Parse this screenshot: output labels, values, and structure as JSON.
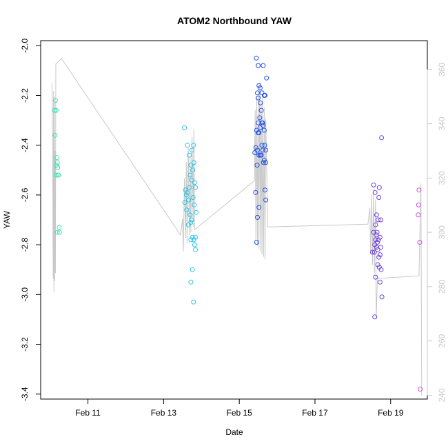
{
  "chart_data": {
    "type": "scatter",
    "title": "ATOM2 Northbound YAW",
    "xlabel": "Date",
    "ylabel": "YAW",
    "x_ticks": [
      "Feb 11",
      "Feb 13",
      "Feb 15",
      "Feb 17",
      "Feb 19"
    ],
    "x_tick_days": [
      11,
      13,
      15,
      17,
      19
    ],
    "xlim": [
      9.75,
      19.97
    ],
    "ylim": [
      -3.42,
      -1.98
    ],
    "y_ticks": [
      "-3.4",
      "-3.2",
      "-3.0",
      "-2.8",
      "-2.6",
      "-2.4",
      "-2.2",
      "-2.0"
    ],
    "y_tick_values": [
      -3.4,
      -3.2,
      -3.0,
      -2.8,
      -2.6,
      -2.4,
      -2.2,
      -2.0
    ],
    "y2_ticks": [
      "240",
      "260",
      "280",
      "300",
      "320",
      "340",
      "360"
    ],
    "y2_tick_values": [
      240,
      260,
      280,
      300,
      320,
      340,
      360
    ],
    "y2lim": [
      238.6,
      370.6
    ],
    "line_color": "#c8c8c8",
    "right_axis_color": "#c8c8c8",
    "line": [
      [
        10.05,
        355
      ],
      [
        10.07,
        318
      ],
      [
        10.08,
        283
      ],
      [
        10.09,
        352
      ],
      [
        10.1,
        278
      ],
      [
        10.11,
        350
      ],
      [
        10.12,
        282
      ],
      [
        10.13,
        330
      ],
      [
        10.14,
        285
      ],
      [
        10.15,
        362
      ],
      [
        10.3,
        364
      ],
      [
        13.45,
        299
      ],
      [
        13.5,
        305
      ],
      [
        13.52,
        293
      ],
      [
        13.55,
        320
      ],
      [
        13.58,
        298
      ],
      [
        13.6,
        326
      ],
      [
        13.62,
        296
      ],
      [
        13.65,
        331
      ],
      [
        13.68,
        299
      ],
      [
        13.7,
        328
      ],
      [
        13.72,
        300
      ],
      [
        13.75,
        335
      ],
      [
        13.78,
        302
      ],
      [
        13.8,
        338
      ],
      [
        13.82,
        301
      ],
      [
        15.4,
        319
      ],
      [
        15.42,
        345
      ],
      [
        15.44,
        297
      ],
      [
        15.46,
        350
      ],
      [
        15.48,
        295
      ],
      [
        15.5,
        352
      ],
      [
        15.52,
        294
      ],
      [
        15.54,
        355
      ],
      [
        15.56,
        293
      ],
      [
        15.58,
        348
      ],
      [
        15.6,
        292
      ],
      [
        15.62,
        350
      ],
      [
        15.64,
        291
      ],
      [
        15.66,
        346
      ],
      [
        15.68,
        290
      ],
      [
        15.7,
        342
      ],
      [
        15.75,
        302
      ],
      [
        18.4,
        303
      ],
      [
        18.45,
        309
      ],
      [
        18.47,
        292
      ],
      [
        18.5,
        314
      ],
      [
        18.52,
        288
      ],
      [
        18.55,
        316
      ],
      [
        18.57,
        285
      ],
      [
        18.6,
        312
      ],
      [
        18.62,
        268
      ],
      [
        18.65,
        283
      ],
      [
        19.75,
        284
      ],
      [
        19.8,
        318
      ],
      [
        19.82,
        240
      ]
    ],
    "series": [
      {
        "color": "#3ce3b1",
        "points": [
          [
            10.12,
            -2.26
          ],
          [
            10.14,
            -2.22
          ],
          [
            10.13,
            -2.36
          ],
          [
            10.16,
            -2.26
          ],
          [
            10.18,
            -2.45
          ],
          [
            10.19,
            -2.47
          ],
          [
            10.17,
            -2.48
          ],
          [
            10.2,
            -2.49
          ],
          [
            10.21,
            -2.52
          ],
          [
            10.16,
            -2.52
          ],
          [
            10.22,
            -2.52
          ],
          [
            10.24,
            -2.73
          ],
          [
            10.25,
            -2.75
          ],
          [
            10.19,
            -2.75
          ]
        ]
      },
      {
        "color": "#27c5e6",
        "points": [
          [
            13.55,
            -2.33
          ],
          [
            13.63,
            -2.4
          ],
          [
            13.68,
            -2.44
          ],
          [
            13.75,
            -2.42
          ],
          [
            13.79,
            -2.4
          ],
          [
            13.72,
            -2.48
          ],
          [
            13.8,
            -2.47
          ],
          [
            13.77,
            -2.5
          ],
          [
            13.7,
            -2.52
          ],
          [
            13.74,
            -2.54
          ],
          [
            13.82,
            -2.55
          ],
          [
            13.68,
            -2.57
          ],
          [
            13.84,
            -2.57
          ],
          [
            13.58,
            -2.58
          ],
          [
            13.62,
            -2.59
          ],
          [
            13.6,
            -2.6
          ],
          [
            13.78,
            -2.61
          ],
          [
            13.66,
            -2.62
          ],
          [
            13.56,
            -2.63
          ],
          [
            13.81,
            -2.64
          ],
          [
            13.61,
            -2.66
          ],
          [
            13.86,
            -2.67
          ],
          [
            13.7,
            -2.68
          ],
          [
            13.74,
            -2.7
          ],
          [
            13.72,
            -2.71
          ],
          [
            13.65,
            -2.72
          ],
          [
            13.76,
            -2.77
          ],
          [
            13.84,
            -2.77
          ],
          [
            13.72,
            -2.78
          ],
          [
            13.8,
            -2.78
          ],
          [
            13.82,
            -2.8
          ],
          [
            13.84,
            -2.82
          ],
          [
            13.76,
            -2.9
          ],
          [
            13.72,
            -2.95
          ],
          [
            13.79,
            -3.03
          ]
        ]
      },
      {
        "color": "#1f4ee8",
        "points": [
          [
            15.45,
            -2.05
          ],
          [
            15.5,
            -2.08
          ],
          [
            15.63,
            -2.08
          ],
          [
            15.72,
            -2.13
          ],
          [
            15.52,
            -2.16
          ],
          [
            15.55,
            -2.17
          ],
          [
            15.48,
            -2.19
          ],
          [
            15.6,
            -2.19
          ],
          [
            15.66,
            -2.2
          ],
          [
            15.68,
            -2.2
          ],
          [
            15.5,
            -2.21
          ],
          [
            15.56,
            -2.23
          ],
          [
            15.58,
            -2.26
          ],
          [
            15.54,
            -2.29
          ],
          [
            15.6,
            -2.31
          ],
          [
            15.62,
            -2.31
          ],
          [
            15.5,
            -2.31
          ],
          [
            15.63,
            -2.32
          ],
          [
            15.55,
            -2.33
          ],
          [
            15.66,
            -2.34
          ],
          [
            15.46,
            -2.34
          ],
          [
            15.52,
            -2.35
          ],
          [
            15.5,
            -2.35
          ],
          [
            15.6,
            -2.4
          ],
          [
            15.67,
            -2.4
          ],
          [
            15.7,
            -2.42
          ],
          [
            15.44,
            -2.41
          ],
          [
            15.48,
            -2.42
          ],
          [
            15.52,
            -2.44
          ],
          [
            15.58,
            -2.44
          ],
          [
            15.56,
            -2.44
          ],
          [
            15.62,
            -2.42
          ],
          [
            15.41,
            -2.43
          ],
          [
            15.66,
            -2.46
          ],
          [
            15.7,
            -2.47
          ],
          [
            15.64,
            -2.47
          ],
          [
            15.47,
            -2.48
          ],
          [
            15.43,
            -2.59
          ],
          [
            15.68,
            -2.58
          ],
          [
            15.7,
            -2.62
          ],
          [
            15.52,
            -2.65
          ],
          [
            15.48,
            -2.69
          ],
          [
            15.46,
            -2.79
          ]
        ]
      },
      {
        "color": "#6a3fdc",
        "points": [
          [
            18.55,
            -2.56
          ],
          [
            18.7,
            -2.57
          ],
          [
            18.59,
            -2.59
          ],
          [
            18.69,
            -2.61
          ],
          [
            18.63,
            -2.68
          ],
          [
            18.67,
            -2.7
          ],
          [
            18.74,
            -2.7
          ],
          [
            18.6,
            -2.72
          ],
          [
            18.55,
            -2.75
          ],
          [
            18.64,
            -2.75
          ],
          [
            18.62,
            -2.76
          ],
          [
            18.72,
            -2.77
          ],
          [
            18.68,
            -2.78
          ],
          [
            18.6,
            -2.78
          ],
          [
            18.65,
            -2.79
          ],
          [
            18.58,
            -2.8
          ],
          [
            18.63,
            -2.81
          ],
          [
            18.66,
            -2.82
          ],
          [
            18.57,
            -2.83
          ],
          [
            18.52,
            -2.83
          ],
          [
            18.74,
            -2.81
          ],
          [
            18.72,
            -2.84
          ],
          [
            18.69,
            -2.85
          ],
          [
            18.66,
            -2.88
          ],
          [
            18.7,
            -2.89
          ],
          [
            18.75,
            -2.9
          ],
          [
            18.6,
            -2.93
          ],
          [
            18.72,
            -2.95
          ],
          [
            18.77,
            -3.01
          ],
          [
            18.58,
            -3.09
          ],
          [
            18.76,
            -2.37
          ]
        ]
      },
      {
        "color": "#c94fd8",
        "points": [
          [
            19.75,
            -2.58
          ],
          [
            19.74,
            -2.64
          ],
          [
            19.73,
            -2.68
          ],
          [
            19.77,
            -2.79
          ],
          [
            19.78,
            -3.38
          ]
        ]
      }
    ]
  }
}
